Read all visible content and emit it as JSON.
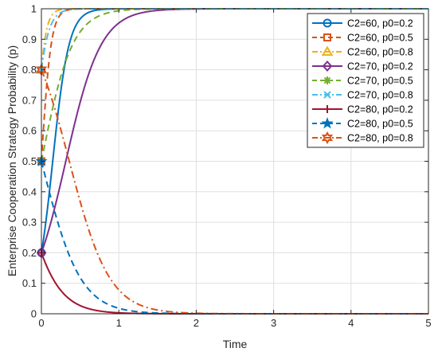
{
  "chart_data": {
    "type": "line",
    "xlabel": "Time",
    "ylabel": "Enterprise Cooperation Strategy Probability (p)",
    "xlim": [
      0,
      5
    ],
    "ylim": [
      0,
      1
    ],
    "xticks": [
      "0",
      "1",
      "2",
      "3",
      "4",
      "5"
    ],
    "yticks": [
      "0",
      "0.1",
      "0.2",
      "0.3",
      "0.4",
      "0.5",
      "0.6",
      "0.7",
      "0.8",
      "0.9",
      "1"
    ],
    "grid": true,
    "legend_position": "top-right",
    "series": [
      {
        "name": "C2=60, p0=0.2",
        "p0": 0.2,
        "rate": 9.5,
        "color": "#0072BD",
        "dash": "solid",
        "marker": "circle"
      },
      {
        "name": "C2=60, p0=0.5",
        "p0": 0.5,
        "rate": 16.0,
        "color": "#D95319",
        "dash": "dashed",
        "marker": "square"
      },
      {
        "name": "C2=60, p0=0.8",
        "p0": 0.8,
        "rate": 18.0,
        "color": "#EDB120",
        "dash": "dashdot",
        "marker": "triangle"
      },
      {
        "name": "C2=70, p0=0.2",
        "p0": 0.2,
        "rate": 4.4,
        "color": "#7E2F8E",
        "dash": "solid",
        "marker": "diamond"
      },
      {
        "name": "C2=70, p0=0.5",
        "p0": 0.5,
        "rate": 5.0,
        "color": "#77AC30",
        "dash": "dashed",
        "marker": "asterisk"
      },
      {
        "name": "C2=70, p0=0.8",
        "p0": 0.8,
        "rate": 12.0,
        "color": "#4DBEEE",
        "dash": "dashdot",
        "marker": "x"
      },
      {
        "name": "C2=80, p0=0.2",
        "p0": 0.2,
        "rate": -4.4,
        "color": "#A2142F",
        "dash": "solid",
        "marker": "plus"
      },
      {
        "name": "C2=80, p0=0.5",
        "p0": 0.5,
        "rate": -4.0,
        "color": "#0072BD",
        "dash": "dashed",
        "marker": "pentagram"
      },
      {
        "name": "C2=80, p0=0.8",
        "p0": 0.8,
        "rate": -3.85,
        "color": "#D95319",
        "dash": "dashdot",
        "marker": "hexagram"
      }
    ]
  }
}
